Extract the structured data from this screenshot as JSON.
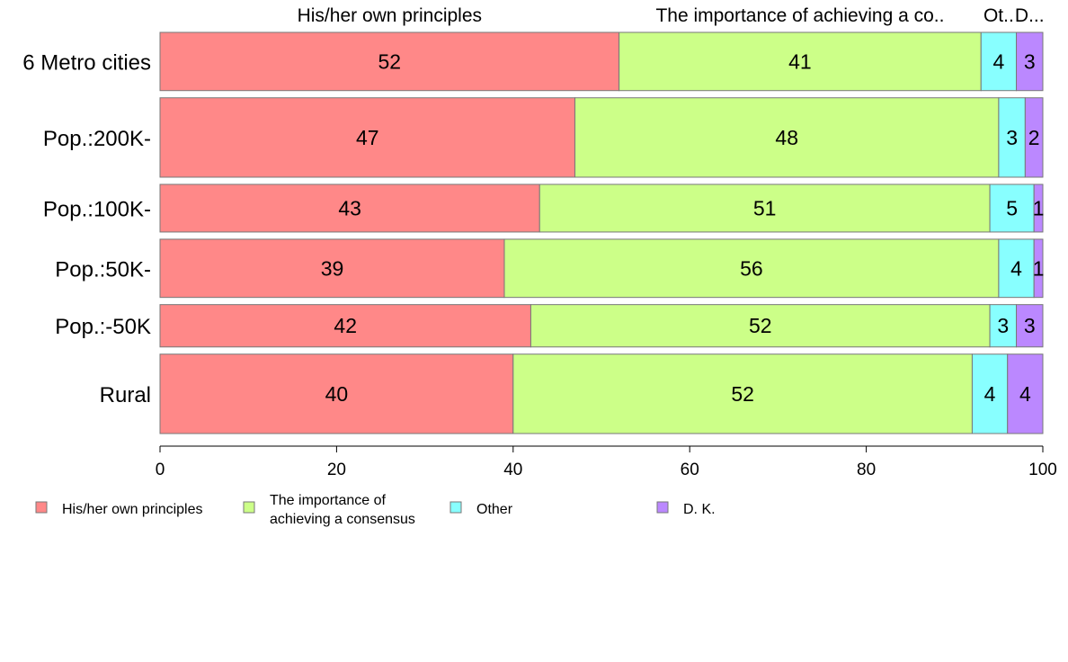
{
  "chart_data": {
    "type": "bar",
    "orientation": "horizontal",
    "stacked": true,
    "categories": [
      "6 Metro cities",
      "Pop.:200K-",
      "Pop.:100K-",
      "Pop.:50K-",
      "Pop.:-50K",
      "Rural"
    ],
    "series": [
      {
        "name": "His/her own principles",
        "values": [
          52,
          47,
          43,
          39,
          42,
          40
        ],
        "color": "#FF8888"
      },
      {
        "name": "The importance of achieving a consensus",
        "values": [
          41,
          48,
          51,
          56,
          52,
          52
        ],
        "color": "#CCFF88"
      },
      {
        "name": "Other",
        "values": [
          4,
          3,
          5,
          4,
          3,
          4
        ],
        "color": "#88FFFF"
      },
      {
        "name": "D. K.",
        "values": [
          3,
          2,
          1,
          1,
          3,
          4
        ],
        "color": "#BB88FF"
      }
    ],
    "bar_weights": [
      11,
      15,
      9,
      11,
      8,
      15
    ],
    "top_labels": [
      "His/her own principles",
      "The importance of achieving a co..",
      "Ot..",
      "D..."
    ],
    "legend_labels": [
      [
        "His/her own principles"
      ],
      [
        "The importance of",
        "achieving a consensus"
      ],
      [
        "Other"
      ],
      [
        "D. K."
      ]
    ],
    "xticks": [
      0,
      20,
      40,
      60,
      80,
      100
    ],
    "xlim": [
      0,
      100
    ],
    "xlabel": "",
    "ylabel": "",
    "title": "",
    "grid": false,
    "legend_position": "bottom"
  }
}
